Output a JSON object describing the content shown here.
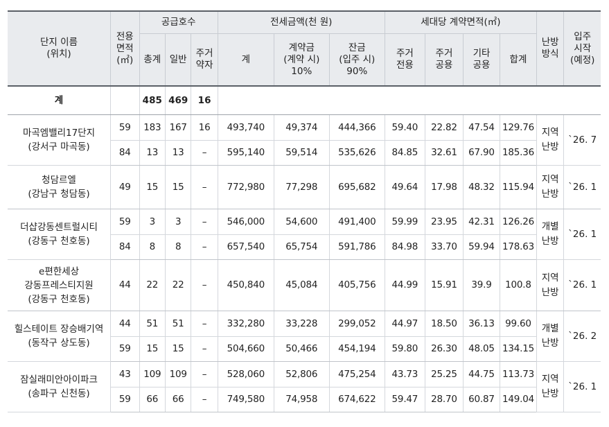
{
  "headers": {
    "name": "단지 이름\n(위치)",
    "area": "전용\n면적\n(㎡)",
    "supply_group": "공급호수",
    "supply_total": "총계",
    "supply_general": "일반",
    "supply_resident": "주거\n약자",
    "deposit_group": "전세금액(천 원)",
    "deposit_total": "계",
    "deposit_contract": "계약금\n(계약 시)\n10%",
    "deposit_balance": "잔금\n(입주 시)\n90%",
    "area_group": "세대당 계약면적(㎡)",
    "area_exclusive": "주거\n전용",
    "area_shared": "주거\n공용",
    "area_other": "기타\n공용",
    "area_sum": "합계",
    "heating": "난방\n방식",
    "movein": "입주\n시작\n(예정)"
  },
  "total_row": {
    "label": "계",
    "supply_total": "485",
    "supply_general": "469",
    "supply_resident": "16"
  },
  "complexes": [
    {
      "name": "마곡엠밸리17단지\n(강서구 마곡동)",
      "heating": "지역\n난방",
      "movein": "`26. 7",
      "rows": [
        {
          "area": "59",
          "total": "183",
          "general": "167",
          "resident": "16",
          "dep_total": "493,740",
          "dep_contract": "49,374",
          "dep_balance": "444,366",
          "a_excl": "59.40",
          "a_shared": "22.82",
          "a_other": "47.54",
          "a_sum": "129.76"
        },
        {
          "area": "84",
          "total": "13",
          "general": "13",
          "resident": "–",
          "dep_total": "595,140",
          "dep_contract": "59,514",
          "dep_balance": "535,626",
          "a_excl": "84.85",
          "a_shared": "32.61",
          "a_other": "67.90",
          "a_sum": "185.36"
        }
      ]
    },
    {
      "name": "청담르엘\n(강남구 청담동)",
      "heating": "지역\n난방",
      "movein": "`26. 1",
      "rows": [
        {
          "area": "49",
          "total": "15",
          "general": "15",
          "resident": "–",
          "dep_total": "772,980",
          "dep_contract": "77,298",
          "dep_balance": "695,682",
          "a_excl": "49.64",
          "a_shared": "17.98",
          "a_other": "48.32",
          "a_sum": "115.94"
        }
      ]
    },
    {
      "name": "더샵강동센트럴시티\n(강동구 천호동)",
      "heating": "개별\n난방",
      "movein": "`26. 1",
      "rows": [
        {
          "area": "59",
          "total": "3",
          "general": "3",
          "resident": "–",
          "dep_total": "546,000",
          "dep_contract": "54,600",
          "dep_balance": "491,400",
          "a_excl": "59.99",
          "a_shared": "23.95",
          "a_other": "42.31",
          "a_sum": "126.26"
        },
        {
          "area": "84",
          "total": "8",
          "general": "8",
          "resident": "–",
          "dep_total": "657,540",
          "dep_contract": "65,754",
          "dep_balance": "591,786",
          "a_excl": "84.98",
          "a_shared": "33.70",
          "a_other": "59.94",
          "a_sum": "178.63"
        }
      ]
    },
    {
      "name": "e편한세상\n강동프레스티지원\n(강동구 천호동)",
      "heating": "지역\n난방",
      "movein": "`26. 1",
      "rows": [
        {
          "area": "44",
          "total": "22",
          "general": "22",
          "resident": "–",
          "dep_total": "450,840",
          "dep_contract": "45,084",
          "dep_balance": "405,756",
          "a_excl": "44.99",
          "a_shared": "15.91",
          "a_other": "39.9",
          "a_sum": "100.8"
        }
      ]
    },
    {
      "name": "힐스테이트 장승배기역\n(동작구 상도동)",
      "heating": "개별\n난방",
      "movein": "`26. 2",
      "rows": [
        {
          "area": "44",
          "total": "51",
          "general": "51",
          "resident": "–",
          "dep_total": "332,280",
          "dep_contract": "33,228",
          "dep_balance": "299,052",
          "a_excl": "44.97",
          "a_shared": "18.50",
          "a_other": "36.13",
          "a_sum": "99.60"
        },
        {
          "area": "59",
          "total": "15",
          "general": "15",
          "resident": "–",
          "dep_total": "504,660",
          "dep_contract": "50,466",
          "dep_balance": "454,194",
          "a_excl": "59.80",
          "a_shared": "26.30",
          "a_other": "48.05",
          "a_sum": "134.15"
        }
      ]
    },
    {
      "name": "잠실래미안아이파크\n(송파구 신천동)",
      "heating": "지역\n난방",
      "movein": "`26. 1",
      "rows": [
        {
          "area": "43",
          "total": "109",
          "general": "109",
          "resident": "–",
          "dep_total": "528,060",
          "dep_contract": "52,806",
          "dep_balance": "475,254",
          "a_excl": "43.73",
          "a_shared": "25.25",
          "a_other": "44.75",
          "a_sum": "113.73"
        },
        {
          "area": "59",
          "total": "66",
          "general": "66",
          "resident": "–",
          "dep_total": "749,580",
          "dep_contract": "74,958",
          "dep_balance": "674,622",
          "a_excl": "59.47",
          "a_shared": "28.70",
          "a_other": "60.87",
          "a_sum": "149.04"
        }
      ]
    }
  ]
}
